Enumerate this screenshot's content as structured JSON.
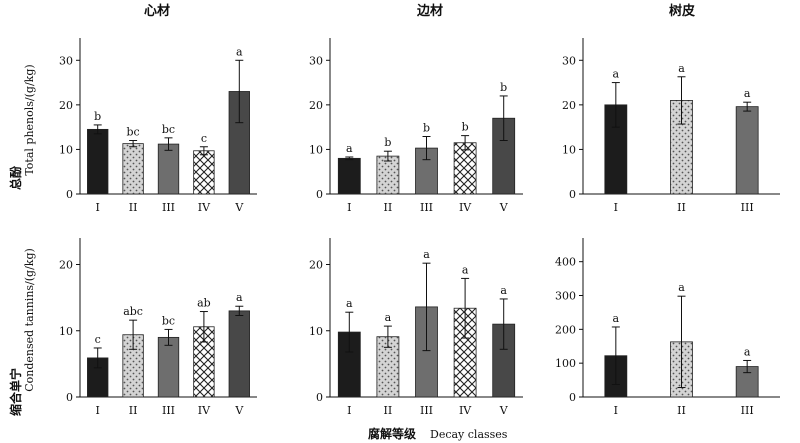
{
  "figure": {
    "y_label_top_cn": "总酚",
    "y_label_top_en": "Total phenols/(g/kg)",
    "y_label_bottom_cn": "缩合单宁",
    "y_label_bottom_en": "Condensed tannins/(g/kg)",
    "x_label_cn": "腐解等级",
    "x_label_en": "Decay classes"
  },
  "colors": {
    "fill_black": "#1c1c1c",
    "fill_dots_bg": "#d4d4d4",
    "fill_dots_fg": "#555555",
    "fill_gray": "#6e6e6e",
    "fill_cross_bg": "#ffffff",
    "fill_cross_fg": "#222222",
    "fill_dark": "#484848"
  },
  "chart_data": [
    {
      "type": "bar",
      "title": "心材",
      "categories": [
        "I",
        "II",
        "III",
        "IV",
        "V"
      ],
      "patterns": [
        "black",
        "dots",
        "gray",
        "cross",
        "dark"
      ],
      "values": [
        14.5,
        11.3,
        11.2,
        9.7,
        23.0
      ],
      "errors": [
        1.0,
        0.7,
        1.4,
        0.9,
        7.0
      ],
      "letters": [
        "b",
        "bc",
        "bc",
        "c",
        "a"
      ],
      "ylim": [
        0,
        35
      ],
      "yticks": [
        0,
        10,
        20,
        30
      ]
    },
    {
      "type": "bar",
      "title": "边材",
      "categories": [
        "I",
        "II",
        "III",
        "IV",
        "V"
      ],
      "patterns": [
        "black",
        "dots",
        "gray",
        "cross",
        "dark"
      ],
      "values": [
        8.0,
        8.5,
        10.3,
        11.5,
        17.0
      ],
      "errors": [
        0.3,
        1.1,
        2.6,
        1.6,
        5.0
      ],
      "letters": [
        "a",
        "b",
        "b",
        "b",
        "b"
      ],
      "ylim": [
        0,
        35
      ],
      "yticks": [
        0,
        10,
        20,
        30
      ]
    },
    {
      "type": "bar",
      "title": "树皮",
      "categories": [
        "I",
        "II",
        "III"
      ],
      "patterns": [
        "black",
        "dots",
        "gray"
      ],
      "values": [
        20.0,
        21.0,
        19.6
      ],
      "errors": [
        5.0,
        5.3,
        1.0
      ],
      "letters": [
        "a",
        "a",
        "a"
      ],
      "ylim": [
        0,
        35
      ],
      "yticks": [
        0,
        10,
        20,
        30
      ]
    },
    {
      "type": "bar",
      "title": "",
      "categories": [
        "I",
        "II",
        "III",
        "IV",
        "V"
      ],
      "patterns": [
        "black",
        "dots",
        "gray",
        "cross",
        "dark"
      ],
      "values": [
        5.9,
        9.4,
        9.0,
        10.6,
        13.0
      ],
      "errors": [
        1.5,
        2.2,
        1.2,
        2.3,
        0.7
      ],
      "letters": [
        "c",
        "abc",
        "bc",
        "ab",
        "a"
      ],
      "ylim": [
        0,
        24
      ],
      "yticks": [
        0,
        10,
        20
      ]
    },
    {
      "type": "bar",
      "title": "",
      "categories": [
        "I",
        "II",
        "III",
        "IV",
        "V"
      ],
      "patterns": [
        "black",
        "dots",
        "gray",
        "cross",
        "dark"
      ],
      "values": [
        9.8,
        9.1,
        13.6,
        13.4,
        11.0
      ],
      "errors": [
        3.0,
        1.6,
        6.6,
        4.5,
        3.8
      ],
      "letters": [
        "a",
        "a",
        "a",
        "a",
        "a"
      ],
      "ylim": [
        0,
        24
      ],
      "yticks": [
        0,
        10,
        20
      ]
    },
    {
      "type": "bar",
      "title": "",
      "categories": [
        "I",
        "II",
        "III"
      ],
      "patterns": [
        "black",
        "dots",
        "gray"
      ],
      "values": [
        122,
        163,
        90
      ],
      "errors": [
        85,
        135,
        18
      ],
      "letters": [
        "a",
        "a",
        "a"
      ],
      "ylim": [
        0,
        470
      ],
      "yticks": [
        0,
        100,
        200,
        300,
        400
      ]
    }
  ]
}
